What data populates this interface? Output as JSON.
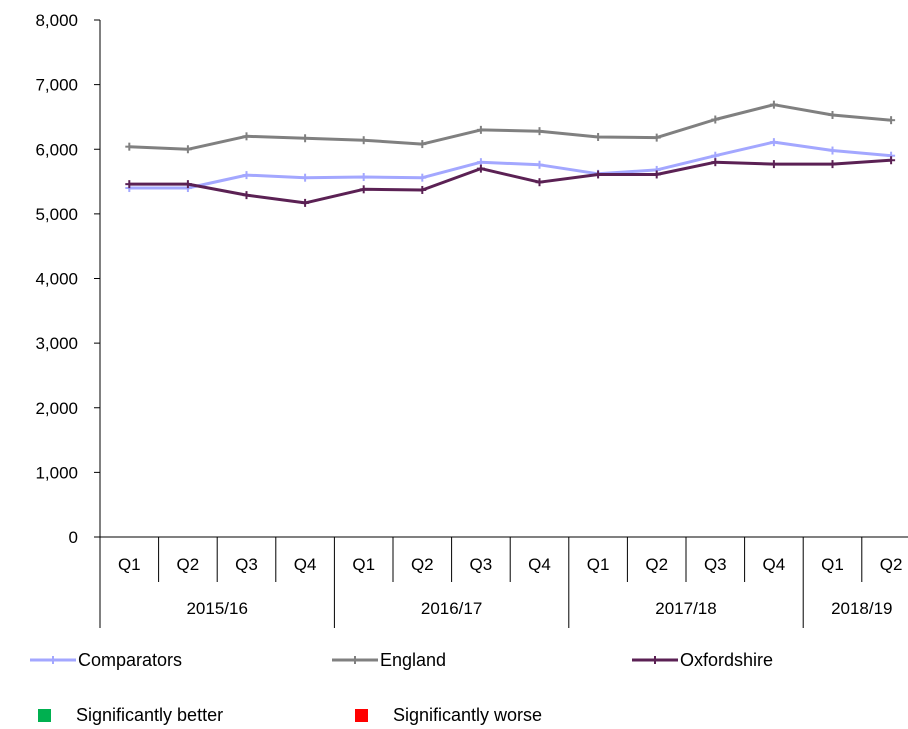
{
  "chart_data": {
    "type": "line",
    "title": "",
    "xlabel": "",
    "ylabel": "",
    "ylim": [
      0,
      8000
    ],
    "yticks": [
      0,
      1000,
      2000,
      3000,
      4000,
      5000,
      6000,
      7000,
      8000
    ],
    "ytick_labels": [
      "0",
      "1,000",
      "2,000",
      "3,000",
      "4,000",
      "5,000",
      "6,000",
      "7,000",
      "8,000"
    ],
    "grid": false,
    "legend_position": "bottom",
    "categories": [
      "Q1",
      "Q2",
      "Q3",
      "Q4",
      "Q1",
      "Q2",
      "Q3",
      "Q4",
      "Q1",
      "Q2",
      "Q3",
      "Q4",
      "Q1",
      "Q2"
    ],
    "groups": [
      {
        "label": "2015/16",
        "count": 4
      },
      {
        "label": "2016/17",
        "count": 4
      },
      {
        "label": "2017/18",
        "count": 4
      },
      {
        "label": "2018/19",
        "count": 2
      }
    ],
    "series": [
      {
        "name": "Comparators",
        "color": "#a3a7ff",
        "values": [
          5400,
          5400,
          5600,
          5560,
          5570,
          5560,
          5800,
          5760,
          5620,
          5680,
          5900,
          6110,
          5980,
          5900
        ]
      },
      {
        "name": "England",
        "color": "#808080",
        "values": [
          6040,
          6000,
          6200,
          6170,
          6140,
          6080,
          6300,
          6280,
          6190,
          6180,
          6460,
          6690,
          6530,
          6450
        ]
      },
      {
        "name": "Oxfordshire",
        "color": "#5b2154",
        "values": [
          5460,
          5460,
          5290,
          5170,
          5380,
          5370,
          5700,
          5490,
          5610,
          5610,
          5800,
          5770,
          5770,
          5830
        ]
      }
    ]
  },
  "significance_legend": [
    {
      "label": "Significantly better",
      "color": "#00b050"
    },
    {
      "label": "Significantly worse",
      "color": "#ff0000"
    }
  ]
}
